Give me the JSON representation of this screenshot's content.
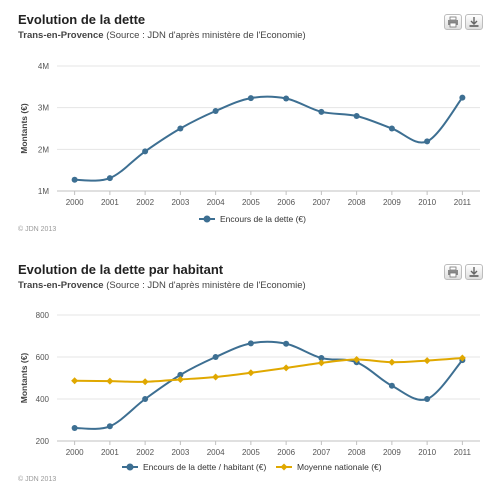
{
  "panels": [
    {
      "title": "Evolution de la dette",
      "subtitle_location": "Trans-en-Provence",
      "subtitle_source": "(Source : JDN d'après ministère de l'Economie)",
      "credits": "© JDN 2013",
      "print_icon": "printer-icon",
      "download_icon": "download-icon"
    },
    {
      "title": "Evolution de la dette par habitant",
      "subtitle_location": "Trans-en-Provence",
      "subtitle_source": "(Source : JDN d'après ministère de l'Economie)",
      "credits": "© JDN 2013",
      "print_icon": "printer-icon",
      "download_icon": "download-icon"
    }
  ],
  "chart_data": [
    {
      "type": "line",
      "title": "Evolution de la dette",
      "xlabel": "",
      "ylabel": "Montants (€)",
      "categories": [
        "2000",
        "2001",
        "2002",
        "2003",
        "2004",
        "2005",
        "2006",
        "2007",
        "2008",
        "2009",
        "2010",
        "2011"
      ],
      "y_ticks": [
        1000000,
        2000000,
        3000000,
        4000000
      ],
      "y_tick_labels": [
        "1M",
        "2M",
        "3M",
        "4M"
      ],
      "ylim": [
        1000000,
        4000000
      ],
      "grid": true,
      "legend_position": "bottom-center",
      "series": [
        {
          "name": "Encours de la dette (€)",
          "color": "#3d6f92",
          "values": [
            1270000,
            1310000,
            1950000,
            2500000,
            2920000,
            3230000,
            3220000,
            2900000,
            2800000,
            2500000,
            2190000,
            3240000
          ]
        }
      ]
    },
    {
      "type": "line",
      "title": "Evolution de la dette par habitant",
      "xlabel": "",
      "ylabel": "Montants (€)",
      "categories": [
        "2000",
        "2001",
        "2002",
        "2003",
        "2004",
        "2005",
        "2006",
        "2007",
        "2008",
        "2009",
        "2010",
        "2011"
      ],
      "y_ticks": [
        200,
        400,
        600,
        800
      ],
      "y_tick_labels": [
        "200",
        "400",
        "600",
        "800"
      ],
      "ylim": [
        200,
        800
      ],
      "grid": true,
      "legend_position": "bottom-center",
      "series": [
        {
          "name": "Encours de la dette / habitant (€)",
          "color": "#3d6f92",
          "marker": "circle",
          "values": [
            262,
            270,
            400,
            515,
            600,
            665,
            663,
            595,
            575,
            463,
            400,
            585
          ]
        },
        {
          "name": "Moyenne nationale (€)",
          "color": "#e0a800",
          "marker": "diamond",
          "values": [
            487,
            485,
            482,
            493,
            505,
            525,
            548,
            572,
            588,
            575,
            583,
            595
          ]
        }
      ]
    }
  ]
}
